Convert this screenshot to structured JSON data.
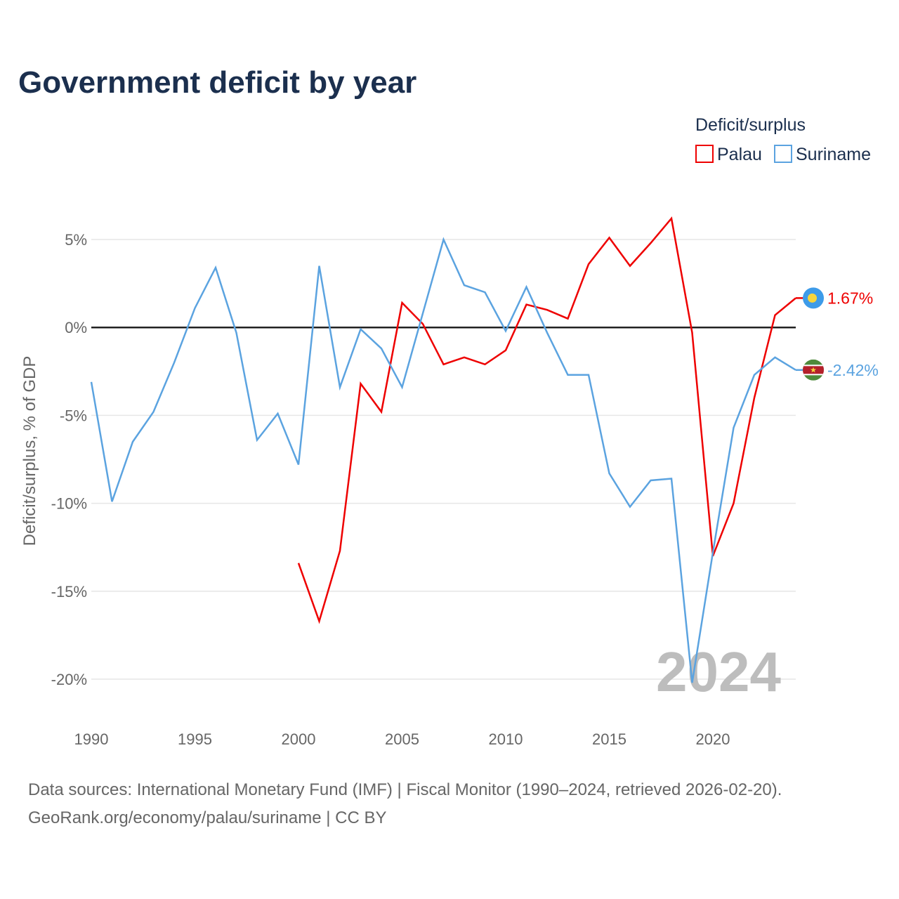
{
  "title": "Government deficit by year",
  "legend": {
    "title": "Deficit/surplus",
    "items": [
      {
        "name": "Palau",
        "color": "#ee0000"
      },
      {
        "name": "Suriname",
        "color": "#5ba3e0"
      }
    ]
  },
  "watermark": "2024",
  "source": {
    "line1": "Data sources: International Monetary Fund (IMF) | Fiscal Monitor (1990–2024, retrieved 2026-02-20).",
    "line2": "GeoRank.org/economy/palau/suriname | CC BY"
  },
  "chart_data": {
    "type": "line",
    "title": "Government deficit by year",
    "xlabel": "",
    "ylabel": "Deficit/surplus, % of GDP",
    "xlim": [
      1990,
      2024
    ],
    "ylim": [
      -20,
      5
    ],
    "xticks": [
      1990,
      1995,
      2000,
      2005,
      2010,
      2015,
      2020
    ],
    "xtick_labels": [
      "1990",
      "1995",
      "2000",
      "2005",
      "2010",
      "2015",
      "2020"
    ],
    "yticks": [
      5,
      0,
      -5,
      -10,
      -15,
      -20
    ],
    "ytick_labels": [
      "5%",
      "0%",
      "-5%",
      "-10%",
      "-15%",
      "-20%"
    ],
    "series": [
      {
        "name": "Palau",
        "color": "#ee0000",
        "end_label": "1.67%",
        "end_icon": "palau-flag-icon",
        "x": [
          2000,
          2001,
          2002,
          2003,
          2004,
          2005,
          2006,
          2007,
          2008,
          2009,
          2010,
          2011,
          2012,
          2013,
          2014,
          2015,
          2016,
          2017,
          2018,
          2019,
          2020,
          2021,
          2022,
          2023,
          2024
        ],
        "values": [
          -13.4,
          -16.7,
          -12.7,
          -3.2,
          -4.8,
          1.4,
          0.2,
          -2.1,
          -1.7,
          -2.1,
          -1.3,
          1.3,
          1.0,
          0.5,
          3.6,
          5.1,
          3.5,
          4.8,
          6.2,
          -0.3,
          -13.0,
          -10.0,
          -4.0,
          0.7,
          1.67
        ]
      },
      {
        "name": "Suriname",
        "color": "#5ba3e0",
        "end_label": "-2.42%",
        "end_icon": "suriname-flag-icon",
        "x": [
          1990,
          1991,
          1992,
          1993,
          1994,
          1995,
          1996,
          1997,
          1998,
          1999,
          2000,
          2001,
          2002,
          2003,
          2004,
          2005,
          2006,
          2007,
          2008,
          2009,
          2010,
          2011,
          2012,
          2013,
          2014,
          2015,
          2016,
          2017,
          2018,
          2019,
          2020,
          2021,
          2022,
          2023,
          2024
        ],
        "values": [
          -3.1,
          -9.9,
          -6.5,
          -4.8,
          -2.0,
          1.1,
          3.4,
          -0.3,
          -6.4,
          -4.9,
          -7.8,
          3.5,
          -3.4,
          -0.1,
          -1.2,
          -3.4,
          0.8,
          5.0,
          2.4,
          2.0,
          -0.2,
          2.3,
          -0.3,
          -2.7,
          -2.7,
          -8.3,
          -10.2,
          -8.7,
          -8.6,
          -20.2,
          -12.8,
          -5.7,
          -2.7,
          -1.7,
          -2.42
        ]
      }
    ]
  }
}
